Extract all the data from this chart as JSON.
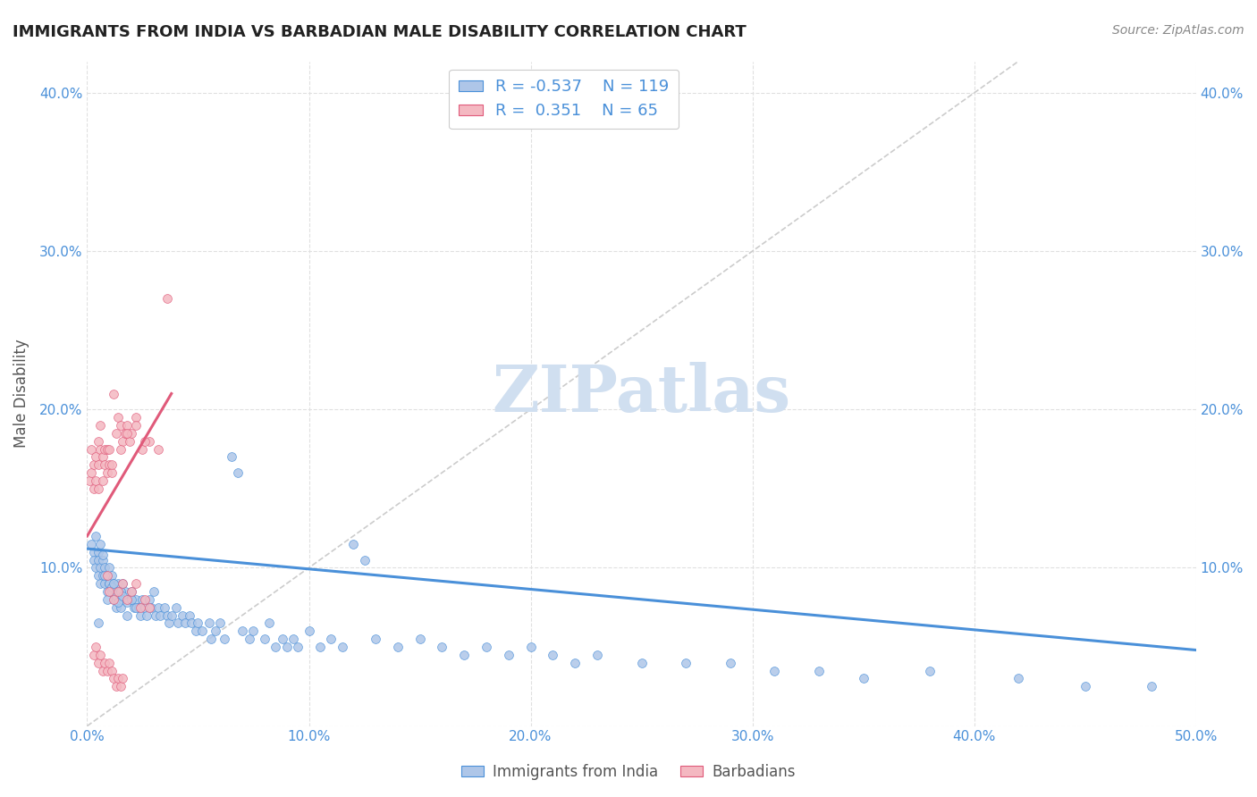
{
  "title": "IMMIGRANTS FROM INDIA VS BARBADIAN MALE DISABILITY CORRELATION CHART",
  "source": "Source: ZipAtlas.com",
  "ylabel": "Male Disability",
  "xlim": [
    0.0,
    0.5
  ],
  "ylim": [
    0.0,
    0.42
  ],
  "x_ticks": [
    0.0,
    0.1,
    0.2,
    0.3,
    0.4,
    0.5
  ],
  "x_tick_labels": [
    "0.0%",
    "10.0%",
    "20.0%",
    "30.0%",
    "40.0%",
    "50.0%"
  ],
  "y_ticks": [
    0.0,
    0.1,
    0.2,
    0.3,
    0.4
  ],
  "y_tick_labels": [
    "",
    "10.0%",
    "20.0%",
    "30.0%",
    "40.0%"
  ],
  "watermark": "ZIPatlas",
  "legend_entries": [
    {
      "label": "Immigrants from India",
      "color": "#aec6e8",
      "R": "-0.537",
      "N": "119"
    },
    {
      "label": "Barbadians",
      "color": "#f4b8c1",
      "R": "0.351",
      "N": "65"
    }
  ],
  "blue_scatter_x": [
    0.002,
    0.003,
    0.003,
    0.004,
    0.004,
    0.005,
    0.005,
    0.005,
    0.006,
    0.006,
    0.007,
    0.007,
    0.008,
    0.008,
    0.009,
    0.009,
    0.01,
    0.01,
    0.011,
    0.011,
    0.012,
    0.012,
    0.013,
    0.013,
    0.014,
    0.015,
    0.015,
    0.016,
    0.016,
    0.017,
    0.018,
    0.018,
    0.019,
    0.02,
    0.021,
    0.022,
    0.023,
    0.024,
    0.025,
    0.026,
    0.027,
    0.028,
    0.029,
    0.03,
    0.031,
    0.032,
    0.033,
    0.035,
    0.036,
    0.037,
    0.038,
    0.04,
    0.041,
    0.043,
    0.044,
    0.046,
    0.047,
    0.049,
    0.05,
    0.052,
    0.055,
    0.056,
    0.058,
    0.06,
    0.062,
    0.065,
    0.068,
    0.07,
    0.073,
    0.075,
    0.08,
    0.082,
    0.085,
    0.088,
    0.09,
    0.093,
    0.095,
    0.1,
    0.105,
    0.11,
    0.115,
    0.12,
    0.125,
    0.13,
    0.14,
    0.15,
    0.16,
    0.17,
    0.18,
    0.19,
    0.2,
    0.21,
    0.22,
    0.23,
    0.25,
    0.27,
    0.29,
    0.31,
    0.33,
    0.35,
    0.38,
    0.42,
    0.45,
    0.48,
    0.005,
    0.006,
    0.007,
    0.008,
    0.009,
    0.01,
    0.011,
    0.012,
    0.013,
    0.014,
    0.015,
    0.016,
    0.018,
    0.02,
    0.022
  ],
  "blue_scatter_y": [
    0.115,
    0.11,
    0.105,
    0.12,
    0.1,
    0.11,
    0.105,
    0.095,
    0.1,
    0.09,
    0.105,
    0.095,
    0.1,
    0.09,
    0.095,
    0.085,
    0.1,
    0.09,
    0.095,
    0.085,
    0.09,
    0.08,
    0.085,
    0.075,
    0.09,
    0.085,
    0.075,
    0.09,
    0.08,
    0.085,
    0.08,
    0.07,
    0.08,
    0.085,
    0.075,
    0.08,
    0.075,
    0.07,
    0.08,
    0.075,
    0.07,
    0.08,
    0.075,
    0.085,
    0.07,
    0.075,
    0.07,
    0.075,
    0.07,
    0.065,
    0.07,
    0.075,
    0.065,
    0.07,
    0.065,
    0.07,
    0.065,
    0.06,
    0.065,
    0.06,
    0.065,
    0.055,
    0.06,
    0.065,
    0.055,
    0.17,
    0.16,
    0.06,
    0.055,
    0.06,
    0.055,
    0.065,
    0.05,
    0.055,
    0.05,
    0.055,
    0.05,
    0.06,
    0.05,
    0.055,
    0.05,
    0.115,
    0.105,
    0.055,
    0.05,
    0.055,
    0.05,
    0.045,
    0.05,
    0.045,
    0.05,
    0.045,
    0.04,
    0.045,
    0.04,
    0.04,
    0.04,
    0.035,
    0.035,
    0.03,
    0.035,
    0.03,
    0.025,
    0.025,
    0.065,
    0.115,
    0.108,
    0.095,
    0.08,
    0.09,
    0.088,
    0.09,
    0.082,
    0.078,
    0.085,
    0.082,
    0.078,
    0.08,
    0.075
  ],
  "pink_scatter_x": [
    0.001,
    0.002,
    0.002,
    0.003,
    0.003,
    0.004,
    0.004,
    0.005,
    0.005,
    0.005,
    0.006,
    0.006,
    0.007,
    0.007,
    0.008,
    0.008,
    0.009,
    0.009,
    0.01,
    0.01,
    0.011,
    0.011,
    0.012,
    0.013,
    0.014,
    0.015,
    0.016,
    0.017,
    0.018,
    0.019,
    0.02,
    0.022,
    0.025,
    0.028,
    0.032,
    0.036,
    0.015,
    0.018,
    0.022,
    0.026,
    0.009,
    0.01,
    0.012,
    0.014,
    0.016,
    0.018,
    0.02,
    0.022,
    0.024,
    0.026,
    0.028,
    0.003,
    0.004,
    0.005,
    0.006,
    0.007,
    0.008,
    0.009,
    0.01,
    0.011,
    0.012,
    0.013,
    0.014,
    0.015,
    0.016
  ],
  "pink_scatter_y": [
    0.155,
    0.16,
    0.175,
    0.15,
    0.165,
    0.155,
    0.17,
    0.15,
    0.165,
    0.18,
    0.175,
    0.19,
    0.155,
    0.17,
    0.165,
    0.175,
    0.16,
    0.175,
    0.165,
    0.175,
    0.16,
    0.165,
    0.21,
    0.185,
    0.195,
    0.19,
    0.18,
    0.185,
    0.19,
    0.18,
    0.185,
    0.195,
    0.175,
    0.18,
    0.175,
    0.27,
    0.175,
    0.185,
    0.19,
    0.18,
    0.095,
    0.085,
    0.08,
    0.085,
    0.09,
    0.08,
    0.085,
    0.09,
    0.075,
    0.08,
    0.075,
    0.045,
    0.05,
    0.04,
    0.045,
    0.035,
    0.04,
    0.035,
    0.04,
    0.035,
    0.03,
    0.025,
    0.03,
    0.025,
    0.03
  ],
  "blue_line_x": [
    0.0,
    0.5
  ],
  "blue_line_y": [
    0.112,
    0.048
  ],
  "pink_line_x": [
    0.0,
    0.038
  ],
  "pink_line_y": [
    0.12,
    0.21
  ],
  "diag_line_x": [
    0.0,
    0.42
  ],
  "diag_line_y": [
    0.0,
    0.42
  ],
  "blue_scatter_color": "#aec6e8",
  "pink_scatter_color": "#f4b8c1",
  "blue_line_color": "#4a90d9",
  "pink_line_color": "#e05a7a",
  "diag_line_color": "#cccccc",
  "title_color": "#222222",
  "source_color": "#888888",
  "tick_color": "#4a90d9",
  "grid_color": "#e0e0e0",
  "watermark_color": "#d0dff0"
}
